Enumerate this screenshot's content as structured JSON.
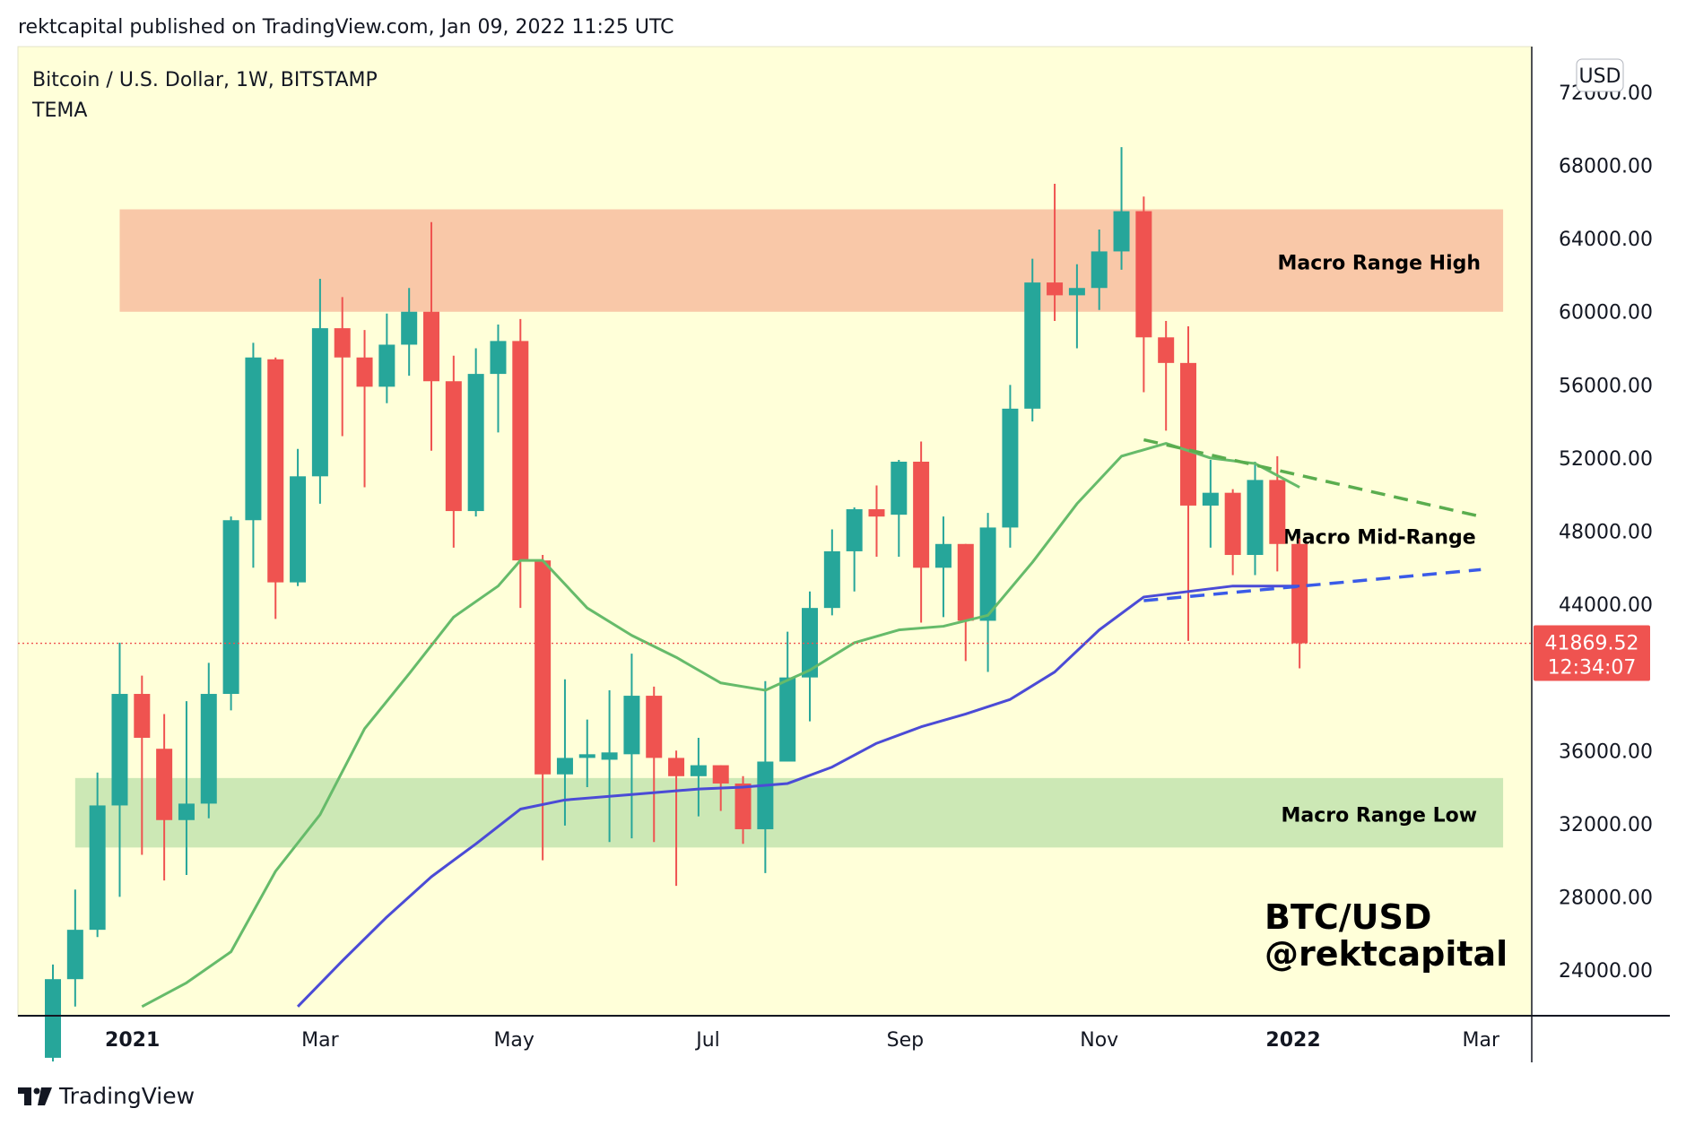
{
  "header": {
    "published": "rektcapital published on TradingView.com, Jan 09, 2022 11:25 UTC"
  },
  "footer": {
    "brand": "TradingView"
  },
  "colors": {
    "background": "#ffffd9",
    "up": "#26a69a",
    "down": "#ef5350",
    "tema_fast": "#66bb6a",
    "tema_slow": "#4b4bd6",
    "range_high_zone": "#f9c8a8",
    "range_low_zone": "#cce8b5",
    "price_label": "#ef5350"
  },
  "chart_data": {
    "type": "candlestick",
    "title": "Bitcoin / U.S. Dollar, 1W, BITSTAMP",
    "indicator": "TEMA",
    "currency": "USD",
    "ylim": [
      21500,
      74500
    ],
    "xlim": [
      "2020-11-26",
      "2022-03-17"
    ],
    "y_ticks": [
      "72000.00",
      "68000.00",
      "64000.00",
      "60000.00",
      "56000.00",
      "52000.00",
      "48000.00",
      "44000.00",
      "36000.00",
      "32000.00",
      "28000.00",
      "24000.00"
    ],
    "x_ticks": [
      {
        "label": "2021",
        "date": "2021-01-01"
      },
      {
        "label": "Mar",
        "date": "2021-03-01"
      },
      {
        "label": "May",
        "date": "2021-05-01"
      },
      {
        "label": "Jul",
        "date": "2021-07-01"
      },
      {
        "label": "Sep",
        "date": "2021-09-01"
      },
      {
        "label": "Nov",
        "date": "2021-11-01"
      },
      {
        "label": "2022",
        "date": "2022-01-01"
      },
      {
        "label": "Mar",
        "date": "2022-03-01"
      }
    ],
    "candles": [
      {
        "date": "2020-12-07",
        "o": 19200,
        "h": 24300,
        "l": 19000,
        "c": 23500
      },
      {
        "date": "2020-12-14",
        "o": 23500,
        "h": 28400,
        "l": 22000,
        "c": 26200
      },
      {
        "date": "2020-12-21",
        "o": 26200,
        "h": 34800,
        "l": 25800,
        "c": 33000
      },
      {
        "date": "2020-12-28",
        "o": 33000,
        "h": 41900,
        "l": 28000,
        "c": 39100
      },
      {
        "date": "2021-01-04",
        "o": 39100,
        "h": 40100,
        "l": 30300,
        "c": 36700
      },
      {
        "date": "2021-01-11",
        "o": 36100,
        "h": 38000,
        "l": 28900,
        "c": 32200
      },
      {
        "date": "2021-01-18",
        "o": 32200,
        "h": 38700,
        "l": 29200,
        "c": 33100
      },
      {
        "date": "2021-01-25",
        "o": 33100,
        "h": 40800,
        "l": 32300,
        "c": 39100
      },
      {
        "date": "2021-02-01",
        "o": 39100,
        "h": 48800,
        "l": 38200,
        "c": 48600
      },
      {
        "date": "2021-02-08",
        "o": 48600,
        "h": 58300,
        "l": 46000,
        "c": 57500
      },
      {
        "date": "2021-02-15",
        "o": 57400,
        "h": 57500,
        "l": 43200,
        "c": 45200
      },
      {
        "date": "2021-02-22",
        "o": 45200,
        "h": 52500,
        "l": 45000,
        "c": 51000
      },
      {
        "date": "2021-03-01",
        "o": 51000,
        "h": 61800,
        "l": 49500,
        "c": 59100
      },
      {
        "date": "2021-03-08",
        "o": 59100,
        "h": 60800,
        "l": 53200,
        "c": 57500
      },
      {
        "date": "2021-03-15",
        "o": 57500,
        "h": 59000,
        "l": 50400,
        "c": 55900
      },
      {
        "date": "2021-03-22",
        "o": 55900,
        "h": 59900,
        "l": 55000,
        "c": 58200
      },
      {
        "date": "2021-03-29",
        "o": 58200,
        "h": 61300,
        "l": 56500,
        "c": 60000
      },
      {
        "date": "2021-04-05",
        "o": 60000,
        "h": 64900,
        "l": 52400,
        "c": 56200
      },
      {
        "date": "2021-04-12",
        "o": 56200,
        "h": 57600,
        "l": 47100,
        "c": 49100
      },
      {
        "date": "2021-04-19",
        "o": 49100,
        "h": 58000,
        "l": 48800,
        "c": 56600
      },
      {
        "date": "2021-04-26",
        "o": 56600,
        "h": 59300,
        "l": 53400,
        "c": 58400
      },
      {
        "date": "2021-05-03",
        "o": 58400,
        "h": 59600,
        "l": 43800,
        "c": 46400
      },
      {
        "date": "2021-05-10",
        "o": 46400,
        "h": 46700,
        "l": 30000,
        "c": 34700
      },
      {
        "date": "2021-05-17",
        "o": 34700,
        "h": 39900,
        "l": 31900,
        "c": 35600
      },
      {
        "date": "2021-05-24",
        "o": 35600,
        "h": 37700,
        "l": 34000,
        "c": 35800
      },
      {
        "date": "2021-05-31",
        "o": 35500,
        "h": 39300,
        "l": 31000,
        "c": 35900
      },
      {
        "date": "2021-06-07",
        "o": 35800,
        "h": 41300,
        "l": 31200,
        "c": 39000
      },
      {
        "date": "2021-06-14",
        "o": 39000,
        "h": 39500,
        "l": 31000,
        "c": 35600
      },
      {
        "date": "2021-06-21",
        "o": 35600,
        "h": 36000,
        "l": 28600,
        "c": 34600
      },
      {
        "date": "2021-06-28",
        "o": 34600,
        "h": 36700,
        "l": 32400,
        "c": 35200
      },
      {
        "date": "2021-07-05",
        "o": 35200,
        "h": 35200,
        "l": 32700,
        "c": 34200
      },
      {
        "date": "2021-07-12",
        "o": 34200,
        "h": 34600,
        "l": 30900,
        "c": 31700
      },
      {
        "date": "2021-07-19",
        "o": 31700,
        "h": 39800,
        "l": 29300,
        "c": 35400
      },
      {
        "date": "2021-07-26",
        "o": 35400,
        "h": 42500,
        "l": 35400,
        "c": 40000
      },
      {
        "date": "2021-08-02",
        "o": 40000,
        "h": 44700,
        "l": 37600,
        "c": 43800
      },
      {
        "date": "2021-08-09",
        "o": 43800,
        "h": 48100,
        "l": 43400,
        "c": 46900
      },
      {
        "date": "2021-08-16",
        "o": 46900,
        "h": 49300,
        "l": 44700,
        "c": 49200
      },
      {
        "date": "2021-08-23",
        "o": 49200,
        "h": 50500,
        "l": 46600,
        "c": 48800
      },
      {
        "date": "2021-08-30",
        "o": 48900,
        "h": 51900,
        "l": 46600,
        "c": 51800
      },
      {
        "date": "2021-09-06",
        "o": 51800,
        "h": 52900,
        "l": 43000,
        "c": 46000
      },
      {
        "date": "2021-09-13",
        "o": 46000,
        "h": 48800,
        "l": 43300,
        "c": 47300
      },
      {
        "date": "2021-09-20",
        "o": 47300,
        "h": 47300,
        "l": 40900,
        "c": 43100
      },
      {
        "date": "2021-09-27",
        "o": 43100,
        "h": 49000,
        "l": 40300,
        "c": 48200
      },
      {
        "date": "2021-10-04",
        "o": 48200,
        "h": 56000,
        "l": 47100,
        "c": 54700
      },
      {
        "date": "2021-10-11",
        "o": 54700,
        "h": 62900,
        "l": 54000,
        "c": 61600
      },
      {
        "date": "2021-10-18",
        "o": 61600,
        "h": 67000,
        "l": 59500,
        "c": 60900
      },
      {
        "date": "2021-10-25",
        "o": 60900,
        "h": 62600,
        "l": 58000,
        "c": 61300
      },
      {
        "date": "2021-11-01",
        "o": 61300,
        "h": 64500,
        "l": 60100,
        "c": 63300
      },
      {
        "date": "2021-11-08",
        "o": 63300,
        "h": 69000,
        "l": 62300,
        "c": 65500
      },
      {
        "date": "2021-11-15",
        "o": 65500,
        "h": 66300,
        "l": 55600,
        "c": 58600
      },
      {
        "date": "2021-11-22",
        "o": 58600,
        "h": 59500,
        "l": 53500,
        "c": 57200
      },
      {
        "date": "2021-11-29",
        "o": 57200,
        "h": 59200,
        "l": 42000,
        "c": 49400
      },
      {
        "date": "2021-12-06",
        "o": 49400,
        "h": 51900,
        "l": 47100,
        "c": 50100
      },
      {
        "date": "2021-12-13",
        "o": 50100,
        "h": 50300,
        "l": 45600,
        "c": 46700
      },
      {
        "date": "2021-12-20",
        "o": 46700,
        "h": 51800,
        "l": 45600,
        "c": 50800
      },
      {
        "date": "2021-12-27",
        "o": 50800,
        "h": 52100,
        "l": 45800,
        "c": 47300
      },
      {
        "date": "2022-01-03",
        "o": 47300,
        "h": 47600,
        "l": 40500,
        "c": 41869
      }
    ],
    "tema_fast": {
      "name": "TEMA",
      "points": [
        [
          "2021-01-04",
          22000
        ],
        [
          "2021-01-18",
          23300
        ],
        [
          "2021-02-01",
          25000
        ],
        [
          "2021-02-15",
          29400
        ],
        [
          "2021-03-01",
          32500
        ],
        [
          "2021-03-15",
          37200
        ],
        [
          "2021-03-29",
          40200
        ],
        [
          "2021-04-12",
          43300
        ],
        [
          "2021-04-26",
          45000
        ],
        [
          "2021-05-03",
          46400
        ],
        [
          "2021-05-10",
          46400
        ],
        [
          "2021-05-24",
          43800
        ],
        [
          "2021-06-07",
          42300
        ],
        [
          "2021-06-21",
          41100
        ],
        [
          "2021-07-05",
          39700
        ],
        [
          "2021-07-19",
          39300
        ],
        [
          "2021-08-02",
          40400
        ],
        [
          "2021-08-16",
          41900
        ],
        [
          "2021-08-30",
          42600
        ],
        [
          "2021-09-13",
          42800
        ],
        [
          "2021-09-27",
          43400
        ],
        [
          "2021-10-11",
          46300
        ],
        [
          "2021-10-25",
          49500
        ],
        [
          "2021-11-08",
          52100
        ],
        [
          "2021-11-22",
          52800
        ],
        [
          "2021-12-06",
          52000
        ],
        [
          "2021-12-20",
          51700
        ],
        [
          "2022-01-03",
          50400
        ]
      ]
    },
    "tema_slow": {
      "name": "TEMA",
      "points": [
        [
          "2021-02-22",
          22000
        ],
        [
          "2021-03-08",
          24500
        ],
        [
          "2021-03-22",
          26900
        ],
        [
          "2021-04-05",
          29100
        ],
        [
          "2021-04-19",
          30900
        ],
        [
          "2021-05-03",
          32800
        ],
        [
          "2021-05-17",
          33300
        ],
        [
          "2021-06-07",
          33600
        ],
        [
          "2021-06-28",
          33900
        ],
        [
          "2021-07-12",
          34000
        ],
        [
          "2021-07-26",
          34200
        ],
        [
          "2021-08-09",
          35100
        ],
        [
          "2021-08-23",
          36400
        ],
        [
          "2021-09-06",
          37300
        ],
        [
          "2021-09-20",
          38000
        ],
        [
          "2021-10-04",
          38800
        ],
        [
          "2021-10-18",
          40300
        ],
        [
          "2021-11-01",
          42600
        ],
        [
          "2021-11-15",
          44400
        ],
        [
          "2021-11-29",
          44700
        ],
        [
          "2021-12-13",
          45000
        ],
        [
          "2022-01-03",
          45000
        ]
      ]
    },
    "trendlines": [
      {
        "style": "dashed",
        "color": "#5aad4e",
        "points": [
          [
            "2021-11-15",
            53000
          ],
          [
            "2022-03-01",
            48800
          ]
        ]
      },
      {
        "style": "dashed",
        "color": "#3a5be8",
        "points": [
          [
            "2021-11-15",
            44200
          ],
          [
            "2022-03-01",
            45900
          ]
        ]
      }
    ],
    "zones": [
      {
        "label": "Macro Range High",
        "from_date": "2020-12-28",
        "to_date": "2022-03-08",
        "y_low": 60000,
        "y_high": 65600,
        "color": "#f9c8a8"
      },
      {
        "label": "Macro Range Low",
        "from_date": "2020-12-14",
        "to_date": "2022-03-08",
        "y_low": 30700,
        "y_high": 34500,
        "color": "#cce8b5"
      }
    ],
    "annotations": [
      {
        "text": "Macro Range High",
        "date": "2022-01-28",
        "y": 62700
      },
      {
        "text": "Macro Mid-Range",
        "date": "2022-01-28",
        "y": 47700
      },
      {
        "text": "Macro Range Low",
        "date": "2022-01-28",
        "y": 32500
      }
    ],
    "watermark": {
      "line1": "BTC/USD",
      "line2": "@rektcapital"
    },
    "last_price": {
      "value": "41869.52",
      "countdown": "12:34:07",
      "y": 41869.52
    }
  }
}
